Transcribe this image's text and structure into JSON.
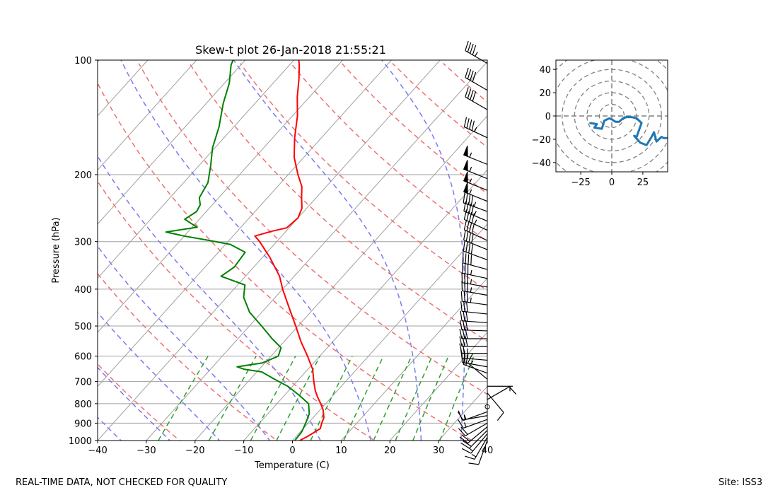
{
  "footer": {
    "left_note": "REAL-TIME DATA, NOT CHECKED FOR QUALITY",
    "site": "Site: ISS3"
  },
  "chart_data": [
    {
      "type": "line",
      "subtype": "skew-t log-p",
      "title": "Skew-t plot 26-Jan-2018 21:55:21",
      "xlabel": "Temperature (C)",
      "ylabel": "Pressure (hPa)",
      "xlim": [
        -40,
        40
      ],
      "ylim": [
        1000,
        100
      ],
      "yscale": "log",
      "x_ticks": [
        -40,
        -30,
        -20,
        -10,
        0,
        10,
        20,
        30,
        40
      ],
      "y_ticks": [
        100,
        200,
        300,
        400,
        500,
        600,
        700,
        800,
        900,
        1000
      ],
      "grid": true,
      "colors": {
        "temperature": "#ff0000",
        "dewpoint": "#008000",
        "dry_adiabats": "#f07070",
        "moist_adiabats": "#7a7af0",
        "mixing_ratio": "#2ca02c",
        "isotherms": "#a0a0a0"
      },
      "series": [
        {
          "role": "temperature",
          "values": [
            {
              "p": 1000,
              "t": 1.5
            },
            {
              "p": 970,
              "t": 2.5
            },
            {
              "p": 930,
              "t": 3.5
            },
            {
              "p": 900,
              "t": 2.8
            },
            {
              "p": 870,
              "t": 2.2
            },
            {
              "p": 830,
              "t": 0.6
            },
            {
              "p": 800,
              "t": -1.0
            },
            {
              "p": 770,
              "t": -2.8
            },
            {
              "p": 740,
              "t": -4.5
            },
            {
              "p": 700,
              "t": -6.5
            },
            {
              "p": 650,
              "t": -9.0
            },
            {
              "p": 600,
              "t": -12.5
            },
            {
              "p": 550,
              "t": -16.5
            },
            {
              "p": 500,
              "t": -20.5
            },
            {
              "p": 450,
              "t": -25.0
            },
            {
              "p": 400,
              "t": -30.0
            },
            {
              "p": 370,
              "t": -33.0
            },
            {
              "p": 330,
              "t": -38.5
            },
            {
              "p": 300,
              "t": -43.5
            },
            {
              "p": 290,
              "t": -45.5
            },
            {
              "p": 282,
              "t": -43.0
            },
            {
              "p": 276,
              "t": -40.5
            },
            {
              "p": 260,
              "t": -40.0
            },
            {
              "p": 245,
              "t": -41.0
            },
            {
              "p": 230,
              "t": -43.0
            },
            {
              "p": 215,
              "t": -45.0
            },
            {
              "p": 200,
              "t": -48.0
            },
            {
              "p": 180,
              "t": -52.0
            },
            {
              "p": 160,
              "t": -55.5
            },
            {
              "p": 140,
              "t": -59.0
            },
            {
              "p": 125,
              "t": -62.5
            },
            {
              "p": 112,
              "t": -65.5
            },
            {
              "p": 103,
              "t": -68.0
            },
            {
              "p": 100,
              "t": -69.0
            }
          ]
        },
        {
          "role": "dewpoint",
          "values": [
            {
              "p": 1000,
              "t": 0.5
            },
            {
              "p": 950,
              "t": 0.3
            },
            {
              "p": 900,
              "t": -0.5
            },
            {
              "p": 850,
              "t": -1.5
            },
            {
              "p": 800,
              "t": -3.5
            },
            {
              "p": 760,
              "t": -7.0
            },
            {
              "p": 720,
              "t": -11.0
            },
            {
              "p": 690,
              "t": -15.0
            },
            {
              "p": 660,
              "t": -19.0
            },
            {
              "p": 650,
              "t": -23.0
            },
            {
              "p": 640,
              "t": -25.0
            },
            {
              "p": 625,
              "t": -20.5
            },
            {
              "p": 600,
              "t": -18.5
            },
            {
              "p": 570,
              "t": -19.5
            },
            {
              "p": 540,
              "t": -23.0
            },
            {
              "p": 500,
              "t": -27.5
            },
            {
              "p": 460,
              "t": -32.5
            },
            {
              "p": 420,
              "t": -36.5
            },
            {
              "p": 390,
              "t": -38.5
            },
            {
              "p": 370,
              "t": -45.0
            },
            {
              "p": 350,
              "t": -44.0
            },
            {
              "p": 320,
              "t": -44.5
            },
            {
              "p": 305,
              "t": -49.0
            },
            {
              "p": 298,
              "t": -54.0
            },
            {
              "p": 290,
              "t": -60.0
            },
            {
              "p": 283,
              "t": -64.5
            },
            {
              "p": 275,
              "t": -59.0
            },
            {
              "p": 262,
              "t": -63.0
            },
            {
              "p": 250,
              "t": -62.0
            },
            {
              "p": 240,
              "t": -62.5
            },
            {
              "p": 230,
              "t": -64.0
            },
            {
              "p": 210,
              "t": -65.0
            },
            {
              "p": 190,
              "t": -67.5
            },
            {
              "p": 170,
              "t": -70.5
            },
            {
              "p": 150,
              "t": -73.0
            },
            {
              "p": 130,
              "t": -76.5
            },
            {
              "p": 115,
              "t": -79.0
            },
            {
              "p": 103,
              "t": -82.0
            },
            {
              "p": 100,
              "t": -82.5
            }
          ]
        }
      ],
      "wind_barbs": [
        {
          "p": 1000,
          "speed_kt": 10,
          "dir_deg": 200
        },
        {
          "p": 980,
          "speed_kt": 15,
          "dir_deg": 210
        },
        {
          "p": 960,
          "speed_kt": 15,
          "dir_deg": 220
        },
        {
          "p": 940,
          "speed_kt": 20,
          "dir_deg": 225
        },
        {
          "p": 920,
          "speed_kt": 20,
          "dir_deg": 230
        },
        {
          "p": 900,
          "speed_kt": 20,
          "dir_deg": 240
        },
        {
          "p": 880,
          "speed_kt": 15,
          "dir_deg": 250
        },
        {
          "p": 860,
          "speed_kt": 15,
          "dir_deg": 260
        },
        {
          "p": 840,
          "speed_kt": 15,
          "dir_deg": 250
        },
        {
          "p": 815,
          "speed_kt": 0,
          "dir_deg": 0
        },
        {
          "p": 780,
          "speed_kt": 10,
          "dir_deg": 60
        },
        {
          "p": 750,
          "speed_kt": 10,
          "dir_deg": 140
        },
        {
          "p": 720,
          "speed_kt": 5,
          "dir_deg": 90
        },
        {
          "p": 690,
          "speed_kt": 15,
          "dir_deg": 310
        },
        {
          "p": 665,
          "speed_kt": 20,
          "dir_deg": 290
        },
        {
          "p": 640,
          "speed_kt": 20,
          "dir_deg": 280
        },
        {
          "p": 615,
          "speed_kt": 25,
          "dir_deg": 275
        },
        {
          "p": 590,
          "speed_kt": 25,
          "dir_deg": 270
        },
        {
          "p": 565,
          "speed_kt": 30,
          "dir_deg": 270
        },
        {
          "p": 540,
          "speed_kt": 30,
          "dir_deg": 270
        },
        {
          "p": 515,
          "speed_kt": 30,
          "dir_deg": 272
        },
        {
          "p": 490,
          "speed_kt": 30,
          "dir_deg": 274
        },
        {
          "p": 465,
          "speed_kt": 30,
          "dir_deg": 276
        },
        {
          "p": 440,
          "speed_kt": 35,
          "dir_deg": 278
        },
        {
          "p": 415,
          "speed_kt": 35,
          "dir_deg": 280
        },
        {
          "p": 395,
          "speed_kt": 35,
          "dir_deg": 280
        },
        {
          "p": 375,
          "speed_kt": 35,
          "dir_deg": 282
        },
        {
          "p": 355,
          "speed_kt": 40,
          "dir_deg": 285
        },
        {
          "p": 335,
          "speed_kt": 40,
          "dir_deg": 290
        },
        {
          "p": 315,
          "speed_kt": 40,
          "dir_deg": 292
        },
        {
          "p": 298,
          "speed_kt": 40,
          "dir_deg": 295
        },
        {
          "p": 280,
          "speed_kt": 45,
          "dir_deg": 295
        },
        {
          "p": 265,
          "speed_kt": 45,
          "dir_deg": 293
        },
        {
          "p": 250,
          "speed_kt": 45,
          "dir_deg": 290
        },
        {
          "p": 235,
          "speed_kt": 55,
          "dir_deg": 292
        },
        {
          "p": 220,
          "speed_kt": 55,
          "dir_deg": 292
        },
        {
          "p": 205,
          "speed_kt": 55,
          "dir_deg": 292
        },
        {
          "p": 188,
          "speed_kt": 55,
          "dir_deg": 292
        },
        {
          "p": 160,
          "speed_kt": 45,
          "dir_deg": 295
        },
        {
          "p": 135,
          "speed_kt": 40,
          "dir_deg": 300
        },
        {
          "p": 120,
          "speed_kt": 40,
          "dir_deg": 300
        },
        {
          "p": 102,
          "speed_kt": 45,
          "dir_deg": 300
        }
      ]
    },
    {
      "type": "line",
      "subtype": "hodograph",
      "xlim": [
        -45,
        45
      ],
      "ylim": [
        -48,
        48
      ],
      "x_ticks": [
        -25,
        0,
        25
      ],
      "y_ticks": [
        40,
        20,
        0,
        -20,
        -40
      ],
      "ring_radii": [
        10,
        20,
        30,
        40,
        50,
        60
      ],
      "color": "#1f77b4",
      "u": [
        -18,
        -12,
        -14,
        -8,
        -6,
        -2,
        0,
        3,
        6,
        9,
        12,
        16,
        20,
        24,
        22,
        20,
        18,
        23,
        28,
        32,
        34,
        36,
        38,
        40,
        42,
        45
      ],
      "v": [
        -6,
        -7,
        -10,
        -11,
        -4,
        -2,
        -3,
        -5,
        -5,
        -2,
        -1,
        -1,
        -2,
        -6,
        -12,
        -18,
        -17,
        -23,
        -25,
        -18,
        -14,
        -22,
        -20,
        -18,
        -19,
        -19
      ]
    }
  ]
}
